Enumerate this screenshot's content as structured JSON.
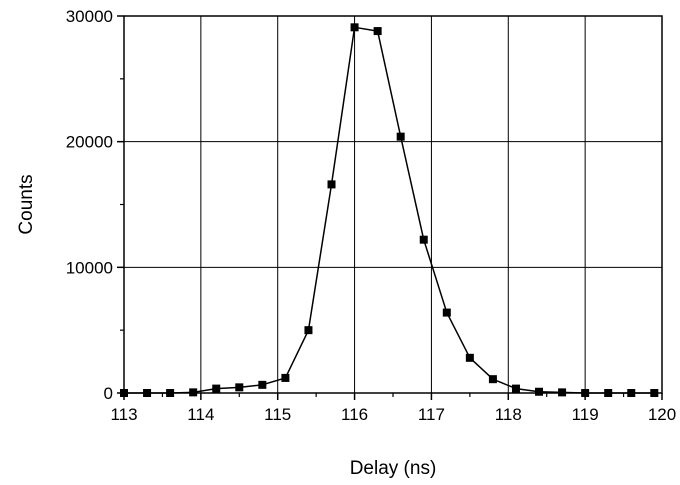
{
  "chart_data": {
    "type": "line",
    "title": "",
    "xlabel": "Delay (ns)",
    "ylabel": "Counts",
    "xlim": [
      113,
      120
    ],
    "ylim": [
      0,
      30000
    ],
    "xticks": [
      113,
      114,
      115,
      116,
      117,
      118,
      119,
      120
    ],
    "yticks": [
      0,
      10000,
      20000,
      30000
    ],
    "grid": true,
    "marker": "square",
    "line_color": "#000000",
    "series": [
      {
        "x": [
          113.0,
          113.3,
          113.6,
          113.9,
          114.2,
          114.5,
          114.8,
          115.1,
          115.4,
          115.7,
          116.0,
          116.3,
          116.6,
          116.9,
          117.2,
          117.5,
          117.8,
          118.1,
          118.4,
          118.7,
          119.0,
          119.3,
          119.6,
          119.9
        ],
        "y": [
          0,
          0,
          0,
          50,
          350,
          450,
          650,
          1200,
          5000,
          16600,
          29100,
          28800,
          20400,
          12200,
          6400,
          2800,
          1100,
          350,
          100,
          50,
          0,
          0,
          0,
          0
        ]
      }
    ]
  }
}
